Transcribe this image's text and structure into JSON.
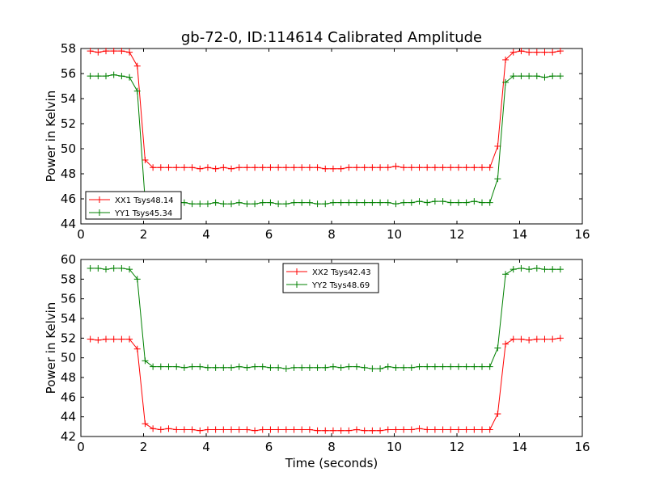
{
  "title": "gb-72-0, ID:114614 Calibrated Amplitude",
  "chart_data": [
    {
      "type": "line",
      "xlabel": "",
      "ylabel": "Power in Kelvin",
      "xlim": [
        0,
        16
      ],
      "ylim": [
        44,
        58
      ],
      "xticks": [
        "0",
        "2",
        "4",
        "6",
        "8",
        "10",
        "12",
        "14",
        "16"
      ],
      "yticks": [
        "44",
        "46",
        "48",
        "50",
        "52",
        "54",
        "56",
        "58"
      ],
      "legend_position": "bottom-left",
      "x": [
        0.3,
        0.55,
        0.8,
        1.05,
        1.3,
        1.55,
        1.8,
        2.05,
        2.3,
        2.55,
        2.8,
        3.05,
        3.3,
        3.55,
        3.8,
        4.05,
        4.3,
        4.55,
        4.8,
        5.05,
        5.3,
        5.55,
        5.8,
        6.05,
        6.3,
        6.55,
        6.8,
        7.05,
        7.3,
        7.55,
        7.8,
        8.05,
        8.3,
        8.55,
        8.8,
        9.05,
        9.3,
        9.55,
        9.8,
        10.05,
        10.3,
        10.55,
        10.8,
        11.05,
        11.3,
        11.55,
        11.8,
        12.05,
        12.3,
        12.55,
        12.8,
        13.05,
        13.3,
        13.55,
        13.8,
        14.05,
        14.3,
        14.55,
        14.8,
        15.05,
        15.3
      ],
      "series": [
        {
          "name": "XX1 Tsys48.14",
          "color": "#ff0000",
          "values": [
            57.8,
            57.7,
            57.8,
            57.8,
            57.8,
            57.7,
            56.6,
            49.1,
            48.5,
            48.5,
            48.5,
            48.5,
            48.5,
            48.5,
            48.4,
            48.5,
            48.4,
            48.5,
            48.4,
            48.5,
            48.5,
            48.5,
            48.5,
            48.5,
            48.5,
            48.5,
            48.5,
            48.5,
            48.5,
            48.5,
            48.4,
            48.4,
            48.4,
            48.5,
            48.5,
            48.5,
            48.5,
            48.5,
            48.5,
            48.6,
            48.5,
            48.5,
            48.5,
            48.5,
            48.5,
            48.5,
            48.5,
            48.5,
            48.5,
            48.5,
            48.5,
            48.5,
            50.2,
            57.1,
            57.7,
            57.8,
            57.7,
            57.7,
            57.7,
            57.7,
            57.8
          ]
        },
        {
          "name": "YY1 Tsys45.34",
          "color": "#008000",
          "values": [
            55.8,
            55.8,
            55.8,
            55.9,
            55.8,
            55.7,
            54.6,
            45.9,
            45.8,
            45.7,
            45.7,
            45.7,
            45.7,
            45.6,
            45.6,
            45.6,
            45.7,
            45.6,
            45.6,
            45.7,
            45.6,
            45.6,
            45.7,
            45.7,
            45.6,
            45.6,
            45.7,
            45.7,
            45.7,
            45.6,
            45.6,
            45.7,
            45.7,
            45.7,
            45.7,
            45.7,
            45.7,
            45.7,
            45.7,
            45.6,
            45.7,
            45.7,
            45.8,
            45.7,
            45.8,
            45.8,
            45.7,
            45.7,
            45.7,
            45.8,
            45.7,
            45.7,
            47.6,
            55.3,
            55.8,
            55.8,
            55.8,
            55.8,
            55.7,
            55.8,
            55.8
          ]
        }
      ]
    },
    {
      "type": "line",
      "xlabel": "Time (seconds)",
      "ylabel": "Power in Kelvin",
      "xlim": [
        0,
        16
      ],
      "ylim": [
        42,
        60
      ],
      "xticks": [
        "0",
        "2",
        "4",
        "6",
        "8",
        "10",
        "12",
        "14",
        "16"
      ],
      "yticks": [
        "42",
        "44",
        "46",
        "48",
        "50",
        "52",
        "54",
        "56",
        "58",
        "60"
      ],
      "legend_position": "top-center",
      "x": [
        0.3,
        0.55,
        0.8,
        1.05,
        1.3,
        1.55,
        1.8,
        2.05,
        2.3,
        2.55,
        2.8,
        3.05,
        3.3,
        3.55,
        3.8,
        4.05,
        4.3,
        4.55,
        4.8,
        5.05,
        5.3,
        5.55,
        5.8,
        6.05,
        6.3,
        6.55,
        6.8,
        7.05,
        7.3,
        7.55,
        7.8,
        8.05,
        8.3,
        8.55,
        8.8,
        9.05,
        9.3,
        9.55,
        9.8,
        10.05,
        10.3,
        10.55,
        10.8,
        11.05,
        11.3,
        11.55,
        11.8,
        12.05,
        12.3,
        12.55,
        12.8,
        13.05,
        13.3,
        13.55,
        13.8,
        14.05,
        14.3,
        14.55,
        14.8,
        15.05,
        15.3
      ],
      "series": [
        {
          "name": "XX2 Tsys42.43",
          "color": "#ff0000",
          "values": [
            51.9,
            51.8,
            51.9,
            51.9,
            51.9,
            51.9,
            50.9,
            43.3,
            42.8,
            42.7,
            42.8,
            42.7,
            42.7,
            42.7,
            42.6,
            42.7,
            42.7,
            42.7,
            42.7,
            42.7,
            42.7,
            42.6,
            42.7,
            42.7,
            42.7,
            42.7,
            42.7,
            42.7,
            42.7,
            42.6,
            42.6,
            42.6,
            42.6,
            42.6,
            42.7,
            42.6,
            42.6,
            42.6,
            42.7,
            42.7,
            42.7,
            42.7,
            42.8,
            42.7,
            42.7,
            42.7,
            42.7,
            42.7,
            42.7,
            42.7,
            42.7,
            42.7,
            44.3,
            51.4,
            51.9,
            51.9,
            51.8,
            51.9,
            51.9,
            51.9,
            52.0
          ]
        },
        {
          "name": "YY2 Tsys48.69",
          "color": "#008000",
          "values": [
            59.1,
            59.1,
            59.0,
            59.1,
            59.1,
            59.0,
            58.0,
            49.7,
            49.1,
            49.1,
            49.1,
            49.1,
            49.0,
            49.1,
            49.1,
            49.0,
            49.0,
            49.0,
            49.0,
            49.1,
            49.0,
            49.1,
            49.1,
            49.0,
            49.0,
            48.9,
            49.0,
            49.0,
            49.0,
            49.0,
            49.0,
            49.1,
            49.0,
            49.1,
            49.1,
            49.0,
            48.9,
            48.9,
            49.1,
            49.0,
            49.0,
            49.0,
            49.1,
            49.1,
            49.1,
            49.1,
            49.1,
            49.1,
            49.1,
            49.1,
            49.1,
            49.1,
            51.0,
            58.5,
            59.0,
            59.1,
            59.0,
            59.1,
            59.0,
            59.0,
            59.0
          ]
        }
      ]
    }
  ]
}
